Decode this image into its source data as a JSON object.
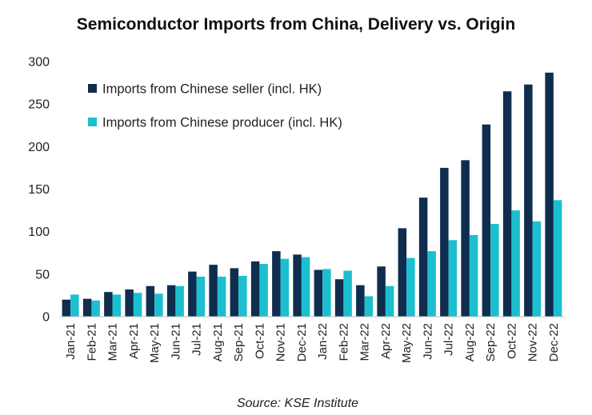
{
  "chart_data": {
    "type": "bar",
    "title": "Semiconductor Imports from China, Delivery vs. Origin",
    "source": "Source: KSE Institute",
    "xlabel": "",
    "ylabel": "",
    "ylim": [
      0,
      300
    ],
    "yticks": [
      0,
      50,
      100,
      150,
      200,
      250,
      300
    ],
    "grid": false,
    "legend_position": "top-left",
    "categories": [
      "Jan-21",
      "Feb-21",
      "Mar-21",
      "Apr-21",
      "May-21",
      "Jun-21",
      "Jul-21",
      "Aug-21",
      "Sep-21",
      "Oct-21",
      "Nov-21",
      "Dec-21",
      "Jan-22",
      "Feb-22",
      "Mar-22",
      "Apr-22",
      "May-22",
      "Jun-22",
      "Jul-22",
      "Aug-22",
      "Sep-22",
      "Oct-22",
      "Nov-22",
      "Dec-22"
    ],
    "series": [
      {
        "name": "Imports from Chinese seller (incl. HK)",
        "color": "#0f2d4e",
        "values": [
          20,
          21,
          29,
          32,
          36,
          37,
          53,
          61,
          57,
          65,
          77,
          73,
          55,
          44,
          37,
          59,
          104,
          140,
          175,
          184,
          226,
          265,
          273,
          287
        ]
      },
      {
        "name": "Imports from Chinese producer (incl. HK)",
        "color": "#1cbfcf",
        "values": [
          26,
          19,
          26,
          28,
          27,
          36,
          47,
          47,
          48,
          62,
          68,
          70,
          56,
          54,
          24,
          36,
          69,
          77,
          90,
          96,
          109,
          125,
          112,
          137
        ]
      }
    ]
  }
}
